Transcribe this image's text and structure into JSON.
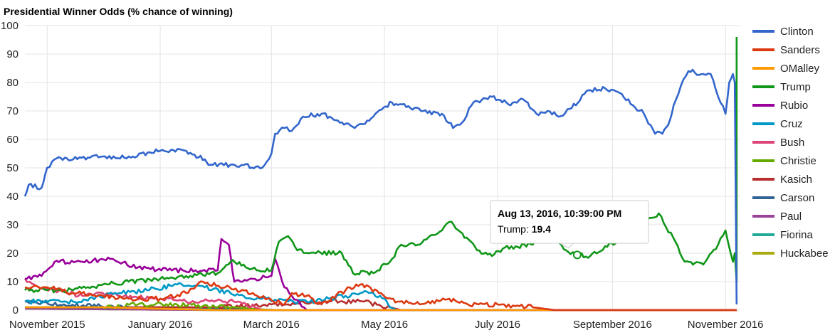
{
  "chart_data": {
    "type": "line",
    "title": "Presidential Winner Odds (% chance of winning)",
    "xlabel": "",
    "ylabel": "",
    "ylim": [
      0,
      100
    ],
    "yticks": [
      0,
      10,
      20,
      30,
      40,
      50,
      60,
      70,
      80,
      90,
      100
    ],
    "xlim": [
      "2015-10-20",
      "2016-11-09"
    ],
    "xticks": [
      {
        "date": "2015-11-01",
        "label": "November 2015"
      },
      {
        "date": "2016-01-01",
        "label": "January 2016"
      },
      {
        "date": "2016-03-01",
        "label": "March 2016"
      },
      {
        "date": "2016-05-01",
        "label": "May 2016"
      },
      {
        "date": "2016-07-01",
        "label": "July 2016"
      },
      {
        "date": "2016-09-01",
        "label": "September 2016"
      },
      {
        "date": "2016-11-01",
        "label": "November 2016"
      }
    ],
    "grid": true,
    "legend_position": "right",
    "series": [
      {
        "name": "Clinton",
        "color": "#3366cc",
        "points": [
          [
            "2015-10-20",
            40
          ],
          [
            "2015-10-22",
            44
          ],
          [
            "2015-10-29",
            43
          ],
          [
            "2015-11-01",
            50
          ],
          [
            "2015-11-05",
            53
          ],
          [
            "2015-11-15",
            53
          ],
          [
            "2015-12-01",
            54
          ],
          [
            "2015-12-15",
            54
          ],
          [
            "2016-01-01",
            56
          ],
          [
            "2016-01-15",
            56
          ],
          [
            "2016-01-25",
            53
          ],
          [
            "2016-01-27",
            51
          ],
          [
            "2016-02-15",
            51
          ],
          [
            "2016-02-25",
            50
          ],
          [
            "2016-03-01",
            55
          ],
          [
            "2016-03-03",
            62
          ],
          [
            "2016-03-08",
            64
          ],
          [
            "2016-03-12",
            63
          ],
          [
            "2016-03-18",
            68
          ],
          [
            "2016-03-28",
            69
          ],
          [
            "2016-04-08",
            66
          ],
          [
            "2016-04-15",
            64
          ],
          [
            "2016-04-25",
            68
          ],
          [
            "2016-05-05",
            73
          ],
          [
            "2016-05-15",
            71
          ],
          [
            "2016-05-22",
            70
          ],
          [
            "2016-06-01",
            69
          ],
          [
            "2016-06-07",
            64
          ],
          [
            "2016-06-12",
            66
          ],
          [
            "2016-06-18",
            73
          ],
          [
            "2016-06-28",
            75
          ],
          [
            "2016-07-08",
            72
          ],
          [
            "2016-07-15",
            74
          ],
          [
            "2016-07-22",
            69
          ],
          [
            "2016-07-28",
            70
          ],
          [
            "2016-08-03",
            68
          ],
          [
            "2016-08-10",
            71
          ],
          [
            "2016-08-18",
            77
          ],
          [
            "2016-08-28",
            78
          ],
          [
            "2016-09-06",
            76
          ],
          [
            "2016-09-12",
            72
          ],
          [
            "2016-09-18",
            69
          ],
          [
            "2016-09-24",
            62
          ],
          [
            "2016-09-28",
            62
          ],
          [
            "2016-10-01",
            65
          ],
          [
            "2016-10-04",
            72
          ],
          [
            "2016-10-08",
            79
          ],
          [
            "2016-10-12",
            84
          ],
          [
            "2016-10-20",
            83
          ],
          [
            "2016-10-24",
            83
          ],
          [
            "2016-10-28",
            75
          ],
          [
            "2016-11-01",
            69
          ],
          [
            "2016-11-03",
            80
          ],
          [
            "2016-11-05",
            83
          ],
          [
            "2016-11-06",
            80
          ],
          [
            "2016-11-07",
            2
          ]
        ]
      },
      {
        "name": "Sanders",
        "color": "#dc3912",
        "points": [
          [
            "2015-10-20",
            8
          ],
          [
            "2015-11-01",
            8
          ],
          [
            "2015-11-15",
            6
          ],
          [
            "2015-12-01",
            5
          ],
          [
            "2015-12-15",
            4
          ],
          [
            "2016-01-01",
            4
          ],
          [
            "2016-01-15",
            6
          ],
          [
            "2016-01-24",
            10
          ],
          [
            "2016-02-05",
            8
          ],
          [
            "2016-02-20",
            6
          ],
          [
            "2016-02-28",
            4
          ],
          [
            "2016-03-08",
            2
          ],
          [
            "2016-03-12",
            6
          ],
          [
            "2016-03-20",
            5
          ],
          [
            "2016-03-28",
            2
          ],
          [
            "2016-04-10",
            7
          ],
          [
            "2016-04-18",
            9
          ],
          [
            "2016-04-28",
            6
          ],
          [
            "2016-05-08",
            3
          ],
          [
            "2016-05-20",
            2
          ],
          [
            "2016-06-05",
            4
          ],
          [
            "2016-06-15",
            2
          ],
          [
            "2016-07-01",
            2
          ],
          [
            "2016-07-20",
            1
          ],
          [
            "2016-08-01",
            0
          ],
          [
            "2016-11-07",
            0
          ]
        ]
      },
      {
        "name": "OMalley",
        "color": "#ff9900",
        "points": [
          [
            "2015-10-20",
            1
          ],
          [
            "2015-12-01",
            1
          ],
          [
            "2016-02-01",
            0
          ],
          [
            "2016-11-07",
            0
          ]
        ]
      },
      {
        "name": "Trump",
        "color": "#109618",
        "points": [
          [
            "2015-10-20",
            7
          ],
          [
            "2015-11-01",
            7
          ],
          [
            "2015-11-15",
            7
          ],
          [
            "2015-12-01",
            9
          ],
          [
            "2015-12-15",
            10
          ],
          [
            "2016-01-01",
            11
          ],
          [
            "2016-01-15",
            12
          ],
          [
            "2016-02-01",
            13
          ],
          [
            "2016-02-08",
            17
          ],
          [
            "2016-02-15",
            16
          ],
          [
            "2016-02-22",
            14
          ],
          [
            "2016-03-01",
            14
          ],
          [
            "2016-03-05",
            24
          ],
          [
            "2016-03-10",
            26
          ],
          [
            "2016-03-15",
            21
          ],
          [
            "2016-03-25",
            20
          ],
          [
            "2016-04-08",
            20
          ],
          [
            "2016-04-14",
            13
          ],
          [
            "2016-04-25",
            13
          ],
          [
            "2016-05-04",
            17
          ],
          [
            "2016-05-10",
            23
          ],
          [
            "2016-05-20",
            23
          ],
          [
            "2016-06-01",
            28
          ],
          [
            "2016-06-05",
            31
          ],
          [
            "2016-06-12",
            27
          ],
          [
            "2016-06-20",
            21
          ],
          [
            "2016-06-28",
            19
          ],
          [
            "2016-07-05",
            22
          ],
          [
            "2016-07-20",
            23
          ],
          [
            "2016-07-25",
            27
          ],
          [
            "2016-08-01",
            26
          ],
          [
            "2016-08-07",
            21
          ],
          [
            "2016-08-13",
            19.4
          ],
          [
            "2016-08-20",
            19
          ],
          [
            "2016-09-05",
            25
          ],
          [
            "2016-09-12",
            30
          ],
          [
            "2016-09-20",
            32
          ],
          [
            "2016-09-26",
            34
          ],
          [
            "2016-09-30",
            29
          ],
          [
            "2016-10-05",
            24
          ],
          [
            "2016-10-10",
            17
          ],
          [
            "2016-10-20",
            16
          ],
          [
            "2016-10-28",
            23
          ],
          [
            "2016-11-01",
            28
          ],
          [
            "2016-11-05",
            17
          ],
          [
            "2016-11-06",
            20
          ],
          [
            "2016-11-07",
            10
          ],
          [
            "2016-11-07",
            96
          ]
        ]
      },
      {
        "name": "Rubio",
        "color": "#990099",
        "points": [
          [
            "2015-10-20",
            11
          ],
          [
            "2015-10-29",
            12
          ],
          [
            "2015-11-05",
            17
          ],
          [
            "2015-11-20",
            17
          ],
          [
            "2015-12-05",
            18
          ],
          [
            "2015-12-20",
            15
          ],
          [
            "2016-01-05",
            14
          ],
          [
            "2016-01-20",
            14
          ],
          [
            "2016-02-01",
            14
          ],
          [
            "2016-02-03",
            25
          ],
          [
            "2016-02-07",
            23
          ],
          [
            "2016-02-10",
            10
          ],
          [
            "2016-02-20",
            11
          ],
          [
            "2016-03-01",
            12
          ],
          [
            "2016-03-03",
            18
          ],
          [
            "2016-03-08",
            8
          ],
          [
            "2016-03-12",
            5
          ],
          [
            "2016-03-16",
            3
          ],
          [
            "2016-03-20",
            0
          ],
          [
            "2016-11-07",
            0
          ]
        ]
      },
      {
        "name": "Cruz",
        "color": "#0099c6",
        "points": [
          [
            "2015-10-20",
            3
          ],
          [
            "2015-11-15",
            3
          ],
          [
            "2015-12-10",
            6
          ],
          [
            "2015-12-25",
            7
          ],
          [
            "2016-01-10",
            9
          ],
          [
            "2016-01-25",
            8
          ],
          [
            "2016-02-15",
            5
          ],
          [
            "2016-02-25",
            4
          ],
          [
            "2016-03-10",
            3
          ],
          [
            "2016-03-25",
            3
          ],
          [
            "2016-04-01",
            4
          ],
          [
            "2016-04-10",
            5
          ],
          [
            "2016-04-18",
            6
          ],
          [
            "2016-04-25",
            6
          ],
          [
            "2016-05-01",
            4
          ],
          [
            "2016-05-04",
            1
          ],
          [
            "2016-05-08",
            0
          ],
          [
            "2016-11-07",
            0
          ]
        ]
      },
      {
        "name": "Bush",
        "color": "#dd4477",
        "points": [
          [
            "2015-10-20",
            11
          ],
          [
            "2015-10-25",
            9
          ],
          [
            "2015-11-05",
            7
          ],
          [
            "2015-11-20",
            5
          ],
          [
            "2015-12-01",
            6
          ],
          [
            "2015-12-10",
            5
          ],
          [
            "2016-01-01",
            4
          ],
          [
            "2016-01-15",
            3
          ],
          [
            "2016-01-30",
            3
          ],
          [
            "2016-02-12",
            3
          ],
          [
            "2016-02-21",
            1
          ],
          [
            "2016-02-25",
            0
          ],
          [
            "2016-11-07",
            0
          ]
        ]
      },
      {
        "name": "Christie",
        "color": "#66aa00",
        "points": [
          [
            "2015-10-20",
            1
          ],
          [
            "2015-12-01",
            1
          ],
          [
            "2015-12-20",
            2
          ],
          [
            "2016-01-10",
            2
          ],
          [
            "2016-02-10",
            1
          ],
          [
            "2016-03-01",
            0
          ],
          [
            "2016-11-07",
            0
          ]
        ]
      },
      {
        "name": "Kasich",
        "color": "#b82e2e",
        "points": [
          [
            "2015-10-20",
            1
          ],
          [
            "2016-02-01",
            1
          ],
          [
            "2016-03-01",
            2
          ],
          [
            "2016-04-01",
            3
          ],
          [
            "2016-04-20",
            3
          ],
          [
            "2016-05-04",
            1
          ],
          [
            "2016-05-10",
            0
          ],
          [
            "2016-11-07",
            0
          ]
        ]
      },
      {
        "name": "Carson",
        "color": "#316395",
        "points": [
          [
            "2015-10-20",
            3
          ],
          [
            "2015-11-10",
            2
          ],
          [
            "2015-12-15",
            1
          ],
          [
            "2016-01-15",
            1
          ],
          [
            "2016-03-05",
            0
          ],
          [
            "2016-11-07",
            0
          ]
        ]
      },
      {
        "name": "Paul",
        "color": "#994499",
        "points": [
          [
            "2015-10-20",
            0.5
          ],
          [
            "2016-02-05",
            0
          ],
          [
            "2016-11-07",
            0
          ]
        ]
      },
      {
        "name": "Fiorina",
        "color": "#22aa99",
        "points": [
          [
            "2015-10-20",
            1
          ],
          [
            "2015-12-01",
            0.5
          ],
          [
            "2016-02-10",
            0
          ],
          [
            "2016-11-07",
            0
          ]
        ]
      },
      {
        "name": "Huckabee",
        "color": "#aaaa11",
        "points": [
          [
            "2015-10-20",
            0.5
          ],
          [
            "2016-02-01",
            0
          ],
          [
            "2016-11-07",
            0
          ]
        ]
      }
    ],
    "tooltip": {
      "title": "Aug 13, 2016, 10:39:00 PM",
      "series": "Trump",
      "label": "Trump: ",
      "value": "19.4",
      "date": "2016-08-13",
      "y": 19.4
    }
  }
}
